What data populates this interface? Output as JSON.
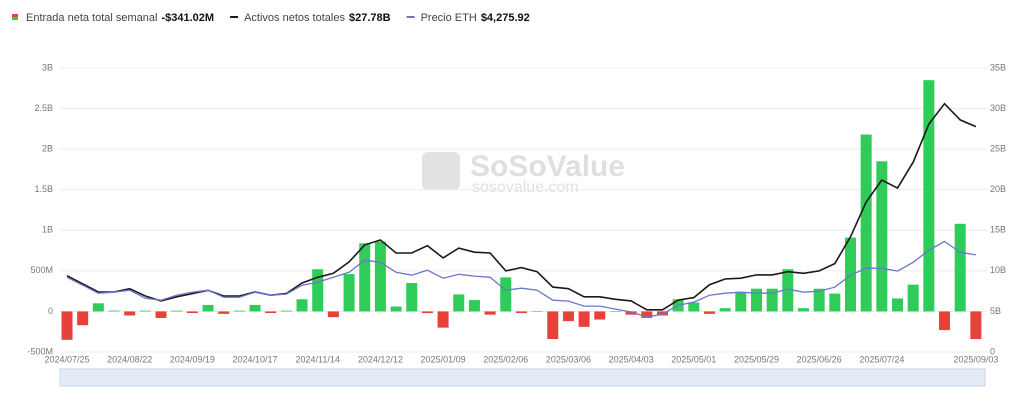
{
  "chart_data": {
    "type": "combo",
    "categories": [
      "2024/07/25",
      null,
      null,
      null,
      "2024/08/22",
      null,
      null,
      null,
      "2024/09/19",
      null,
      null,
      null,
      "2024/10/17",
      null,
      null,
      null,
      "2024/11/14",
      null,
      null,
      null,
      "2024/12/12",
      null,
      null,
      null,
      "2025/01/09",
      null,
      null,
      null,
      "2025/02/06",
      null,
      null,
      null,
      "2025/03/06",
      null,
      null,
      null,
      "2025/04/03",
      null,
      null,
      null,
      "2025/05/01",
      null,
      null,
      null,
      "2025/05/29",
      null,
      null,
      null,
      "2025/06/26",
      null,
      null,
      null,
      "2025/07/24",
      null,
      null,
      null,
      null,
      null,
      "2025/09/03"
    ],
    "series": [
      {
        "name": "Entrada neta total semanal",
        "type": "bar",
        "axis": "y",
        "color": "#2fcc5a",
        "negative_color": "#e8413b",
        "value_label": "-$341.02M",
        "values": [
          -0.35,
          -0.17,
          0.1,
          0.01,
          -0.05,
          0.01,
          -0.08,
          0.01,
          -0.02,
          0.08,
          -0.03,
          0.01,
          0.08,
          -0.02,
          0.01,
          0.15,
          0.52,
          -0.07,
          0.46,
          0.84,
          0.86,
          0.06,
          0.35,
          -0.02,
          -0.2,
          0.21,
          0.14,
          -0.04,
          0.42,
          -0.02,
          0.0,
          -0.34,
          -0.12,
          -0.19,
          -0.1,
          0.0,
          -0.04,
          -0.08,
          -0.05,
          0.15,
          0.11,
          -0.03,
          0.04,
          0.24,
          0.28,
          0.28,
          0.52,
          0.04,
          0.28,
          0.22,
          0.91,
          2.18,
          1.85,
          0.16,
          0.33,
          2.85,
          -0.23,
          1.08,
          -0.34102
        ]
      },
      {
        "name": "Activos netos totales",
        "type": "line",
        "axis": "y2",
        "color": "#1a1a1a",
        "value_label": "$27.78B",
        "values": [
          9.4,
          8.4,
          7.4,
          7.4,
          7.8,
          6.9,
          6.3,
          6.8,
          7.2,
          7.6,
          6.9,
          6.9,
          7.4,
          7.0,
          7.2,
          8.5,
          9.2,
          9.7,
          11.1,
          13.2,
          13.8,
          12.2,
          12.2,
          13.1,
          11.6,
          12.8,
          12.3,
          12.2,
          10.0,
          10.4,
          9.9,
          8.0,
          7.8,
          6.8,
          6.8,
          6.5,
          6.3,
          5.2,
          5.2,
          6.4,
          6.7,
          8.3,
          9.0,
          9.1,
          9.5,
          9.5,
          9.9,
          9.7,
          10.0,
          10.9,
          14.2,
          18.5,
          21.2,
          20.2,
          23.4,
          28.1,
          30.6,
          28.6,
          27.78
        ]
      },
      {
        "name": "Precio ETH",
        "type": "line",
        "axis": "y3",
        "color": "#6b77c9",
        "value_label": "$4,275.92",
        "values": [
          3290,
          2940,
          2590,
          2630,
          2720,
          2370,
          2280,
          2500,
          2630,
          2720,
          2410,
          2410,
          2630,
          2500,
          2550,
          2940,
          3070,
          3290,
          3510,
          4040,
          3950,
          3510,
          3380,
          3600,
          3250,
          3420,
          3340,
          3290,
          2720,
          2810,
          2720,
          2280,
          2240,
          2020,
          2020,
          1890,
          1760,
          1540,
          1670,
          2060,
          2190,
          2500,
          2590,
          2630,
          2590,
          2590,
          2770,
          2630,
          2680,
          2850,
          3380,
          3690,
          3690,
          3560,
          3950,
          4480,
          4870,
          4390,
          4275.92
        ]
      }
    ],
    "ylim": [
      -0.5,
      3
    ],
    "yticks": [
      {
        "value": -0.5,
        "label": "-500M"
      },
      0,
      {
        "value": 0.5,
        "label": "500M"
      },
      {
        "value": 1,
        "label": "1B"
      },
      {
        "value": 1.5,
        "label": "1.5B"
      },
      {
        "value": 2,
        "label": "2B"
      },
      {
        "value": 2.5,
        "label": "2.5B"
      },
      {
        "value": 3,
        "label": "3B"
      }
    ],
    "y2lim": [
      0,
      35
    ],
    "y2ticks": [
      0,
      {
        "value": 5,
        "label": "5B"
      },
      {
        "value": 10,
        "label": "10B"
      },
      {
        "value": 15,
        "label": "15B"
      },
      {
        "value": 20,
        "label": "20B"
      },
      {
        "value": 25,
        "label": "25B"
      },
      {
        "value": 30,
        "label": "30B"
      },
      {
        "value": 35,
        "label": "35B"
      }
    ],
    "y3lim": [
      0,
      12500
    ],
    "grid": true,
    "watermark": {
      "title": "SoSoValue",
      "url": "sosovalue.com"
    }
  }
}
